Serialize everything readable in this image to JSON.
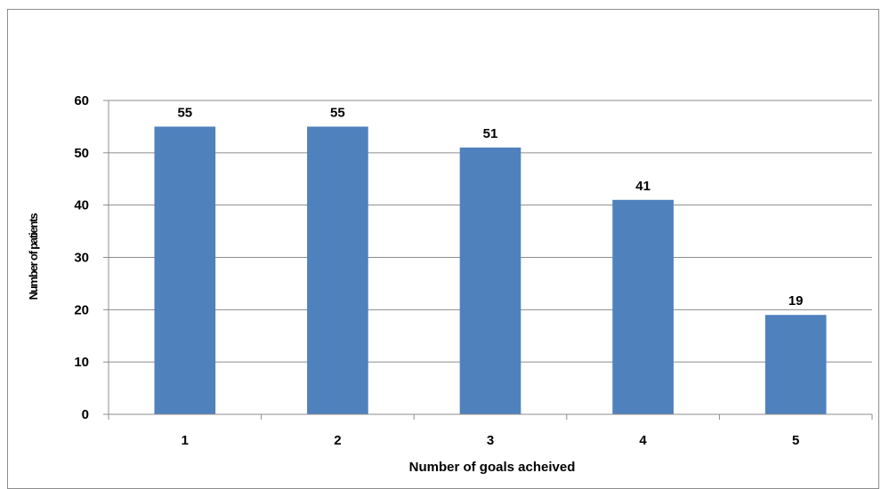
{
  "chart_data": {
    "type": "bar",
    "title": "",
    "xlabel": "Number of goals acheived",
    "ylabel": "Number of patients",
    "categories": [
      "1",
      "2",
      "3",
      "4",
      "5"
    ],
    "values": [
      55,
      55,
      51,
      41,
      19
    ],
    "data_labels": [
      "55",
      "55",
      "51",
      "41",
      "19"
    ],
    "ylim": [
      0,
      60
    ],
    "y_ticks": [
      "0",
      "10",
      "20",
      "30",
      "40",
      "50",
      "60"
    ],
    "grid": true,
    "legend": "none",
    "colors": {
      "bar": "#4f81bd",
      "grid": "#8c8c8c",
      "axis": "#8c8c8c"
    }
  }
}
